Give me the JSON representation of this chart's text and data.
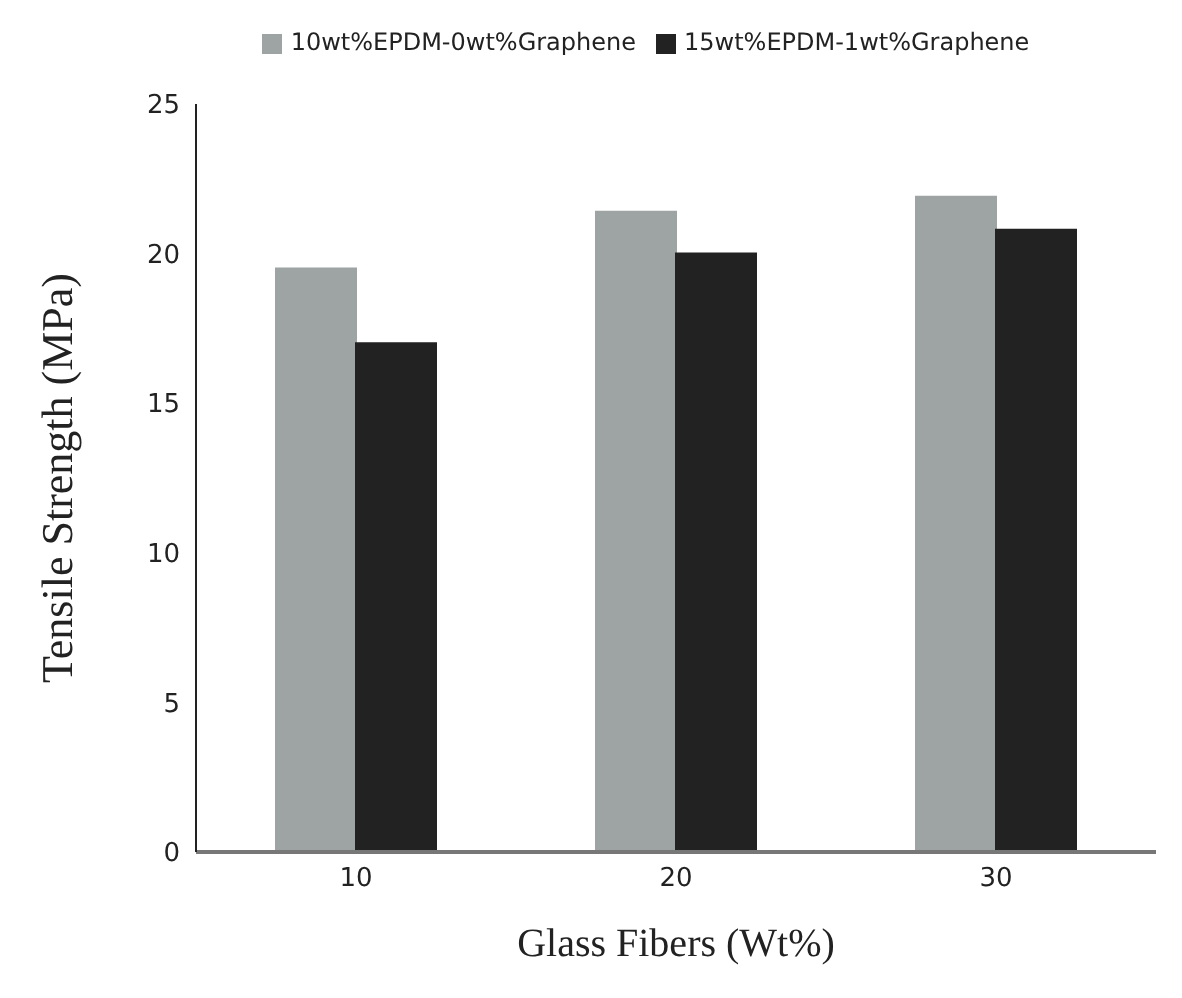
{
  "chart_data": {
    "type": "bar",
    "xlabel": "Glass Fibers (Wt%)",
    "ylabel": "Tensile Strength (MPa)",
    "categories": [
      "10",
      "20",
      "30"
    ],
    "series": [
      {
        "name": "10wt%EPDM-0wt%Graphene",
        "color": "#9ea3a3",
        "values": [
          19.5,
          21.4,
          21.9
        ]
      },
      {
        "name": "15wt%EPDM-1wt%Graphene",
        "color": "#222222",
        "values": [
          17,
          20,
          20.8
        ]
      }
    ],
    "ylim": [
      0,
      25
    ],
    "yticks": [
      0,
      5,
      10,
      15,
      20,
      25
    ],
    "legend": "top"
  }
}
